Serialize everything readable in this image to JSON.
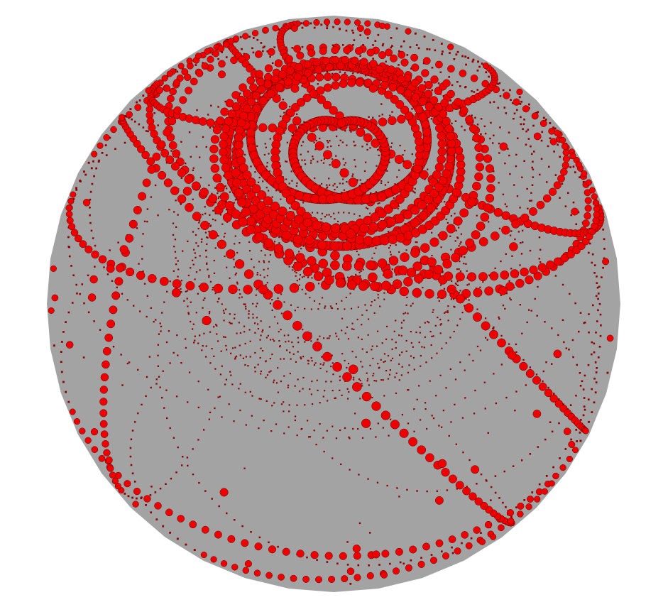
{
  "scene": {
    "background_color": "#ffffff",
    "sphere_color": "#a3a3a3",
    "front_color": "#ee0000",
    "back_color": "#8c0000",
    "bead_outline": "#5a0000",
    "trajectory_count": 14,
    "front_pole": "north",
    "back_pole": "south"
  }
}
